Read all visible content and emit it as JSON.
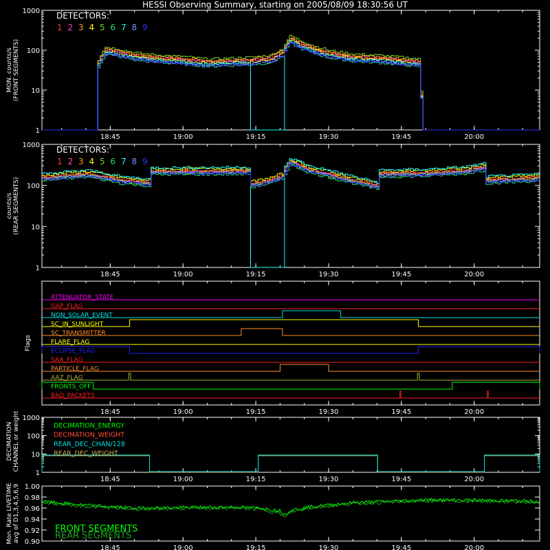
{
  "title": "HESSI Observing Summary, starting on 2005/08/09 18:30:56 UT",
  "time_ticks": [
    "18:45",
    "19:00",
    "19:15",
    "19:30",
    "19:45",
    "20:00"
  ],
  "time_tick_minutes": [
    45,
    60,
    75,
    90,
    105,
    120
  ],
  "time_axis": {
    "start_min": 30.93,
    "end_min": 133.5,
    "unit": "minutes after 18:00 UT"
  },
  "detector_colors": [
    "#ff3a3a",
    "#ff44cc",
    "#ff9a20",
    "#ffff00",
    "#7fd020",
    "#20e070",
    "#20ffff",
    "#7090ff",
    "#3030ff"
  ],
  "flag_colors": {
    "magenta": "#ff00ff",
    "red": "#ff2020",
    "cyan": "#00e0e0",
    "yellow": "#ffff00",
    "orange": "#ff9030",
    "blue": "#2020ff",
    "olive": "#b0b040",
    "green": "#00ff00"
  },
  "chart_data": [
    {
      "type": "line",
      "ylabel": "MON. counts/s\n(FRONT SEGMENTS)",
      "legend_title": "DETECTORS:",
      "legend_entries": [
        "1",
        "2",
        "3",
        "4",
        "5",
        "6",
        "7",
        "8",
        "9"
      ],
      "y_scale": "log",
      "ylim": [
        1,
        1000
      ],
      "y_ticks": [
        "1",
        "10",
        "100",
        "1000"
      ],
      "x": [
        30.93,
        42.0,
        42.3,
        44,
        50,
        55,
        60,
        65,
        70,
        74,
        78,
        80.5,
        82,
        84,
        87,
        90,
        95,
        100,
        105,
        108.5,
        109,
        133.5
      ],
      "base": [
        1,
        1,
        45,
        105,
        75,
        65,
        60,
        52,
        55,
        58,
        65,
        95,
        200,
        150,
        110,
        85,
        70,
        65,
        58,
        52,
        1,
        1
      ],
      "series": [
        {
          "name": "1",
          "scale": 1.0
        },
        {
          "name": "2",
          "scale": 0.95
        },
        {
          "name": "3",
          "scale": 1.05
        },
        {
          "name": "4",
          "scale": 0.9
        },
        {
          "name": "5",
          "scale": 1.15
        },
        {
          "name": "6",
          "scale": 0.75
        },
        {
          "name": "7",
          "scale": 0.85,
          "gap": [
            73.6,
            80.6
          ]
        },
        {
          "name": "8",
          "scale": 0.8
        },
        {
          "name": "9",
          "scale": 0.78
        }
      ]
    },
    {
      "type": "line",
      "ylabel": "counts/s\n(REAR SEGMENTS)",
      "legend_title": "DETECTORS:",
      "legend_entries": [
        "1",
        "2",
        "3",
        "4",
        "5",
        "6",
        "7",
        "8",
        "9"
      ],
      "y_scale": "log",
      "ylim": [
        1,
        1000
      ],
      "y_ticks": [
        "1",
        "10",
        "100",
        "1000"
      ],
      "x": [
        30.93,
        40,
        47,
        53,
        53.1,
        60,
        73.5,
        73.6,
        78,
        80.5,
        82,
        86,
        92,
        96,
        100,
        100.1,
        110,
        118,
        122,
        122.1,
        133.5
      ],
      "base": [
        160,
        200,
        140,
        120,
        230,
        230,
        235,
        110,
        140,
        180,
        390,
        250,
        170,
        130,
        100,
        200,
        210,
        240,
        290,
        140,
        160
      ],
      "series": [
        {
          "name": "1",
          "scale": 1.0
        },
        {
          "name": "2",
          "scale": 0.92
        },
        {
          "name": "3",
          "scale": 0.96
        },
        {
          "name": "4",
          "scale": 1.1
        },
        {
          "name": "5",
          "scale": 0.88
        },
        {
          "name": "6",
          "scale": 0.8
        },
        {
          "name": "7",
          "scale": 1.18,
          "gap": [
            73.6,
            80.6
          ]
        },
        {
          "name": "8",
          "scale": 0.9
        },
        {
          "name": "9",
          "scale": 0.85
        }
      ]
    },
    {
      "type": "step",
      "ylabel": "Flags",
      "rows": [
        {
          "label": "ATTENUATOR_STATE",
          "color": "magenta",
          "on": []
        },
        {
          "label": "GAP_FLAG",
          "color": "red",
          "on": []
        },
        {
          "label": "NON_SOLAR_EVENT",
          "color": "cyan",
          "on": [
            [
              80.5,
              92.5
            ]
          ]
        },
        {
          "label": "SC_IN_SUNLIGHT",
          "color": "yellow",
          "on": [
            [
              49,
              108.5
            ]
          ]
        },
        {
          "label": "SC_TRANSMITTER",
          "color": "orange",
          "on": [
            [
              72,
              80.5
            ]
          ]
        },
        {
          "label": "FLARE_FLAG",
          "color": "yellow",
          "on": []
        },
        {
          "label": "ECLIPSE_FLAG",
          "color": "blue",
          "on": [
            [
              30.93,
              49
            ],
            [
              108.5,
              133.5
            ]
          ]
        },
        {
          "label": "SAA_FLAG",
          "color": "red",
          "on": []
        },
        {
          "label": "PARTICLE_FLAG",
          "color": "orange",
          "on": [
            [
              80.0,
              90.0
            ]
          ]
        },
        {
          "label": "AAZ_FLAG",
          "color": "olive",
          "on": [
            [
              48.8,
              49.2
            ],
            [
              108.3,
              108.7
            ]
          ]
        },
        {
          "label": "FRONTS_OFF",
          "color": "green",
          "on": [
            [
              30.93,
              41.5
            ],
            [
              115.5,
              133.5
            ]
          ]
        },
        {
          "label": "BAD_PACKETS",
          "color": "red",
          "on": [
            [
              104.7,
              104.9
            ],
            [
              122.7,
              122.9
            ]
          ]
        }
      ]
    },
    {
      "type": "step",
      "ylabel": "DECIMATION\nCHANNEL or weight",
      "y_scale": "log",
      "ylim": [
        1,
        1000
      ],
      "y_ticks": [
        "1",
        "10",
        "100",
        "1000"
      ],
      "legend_entries": [
        {
          "name": "DECIMATION_ENERGY",
          "color": "#00ff00"
        },
        {
          "name": "DECIMATION_WEIGHT",
          "color": "#ff5030"
        },
        {
          "name": "REAR_DEC_CHAN/128",
          "color": "#00e0e0"
        },
        {
          "name": "REAR_DEC_WEIGHT",
          "color": "#c8b060"
        }
      ],
      "weight_high_intervals": [
        [
          30.93,
          53.1
        ],
        [
          75.5,
          100.1
        ],
        [
          122.1,
          133.5
        ]
      ],
      "weight_high": 8,
      "weight_low": 1
    },
    {
      "type": "line",
      "ylabel": "Mon. Rate LIVETIME\navg of D1,3,4,5,6,9",
      "ylim": [
        0.9,
        1.0
      ],
      "y_ticks": [
        "0.90",
        "0.92",
        "0.94",
        "0.96",
        "0.98",
        "1.00"
      ],
      "legend_entries": [
        {
          "name": "FRONT SEGMENTS",
          "color": "#00ff00"
        },
        {
          "name": "REAR SEGMENTS",
          "color": "#20a020"
        }
      ],
      "x": [
        30.93,
        40,
        50,
        60,
        70,
        76,
        80,
        81,
        82,
        86,
        95,
        110,
        125,
        133.5
      ],
      "front": [
        0.972,
        0.965,
        0.96,
        0.961,
        0.962,
        0.96,
        0.955,
        0.948,
        0.956,
        0.962,
        0.97,
        0.975,
        0.974,
        0.972
      ],
      "rear": [
        0.97,
        0.963,
        0.958,
        0.959,
        0.96,
        0.958,
        0.95,
        0.942,
        0.952,
        0.96,
        0.968,
        0.973,
        0.972,
        0.97
      ]
    }
  ]
}
